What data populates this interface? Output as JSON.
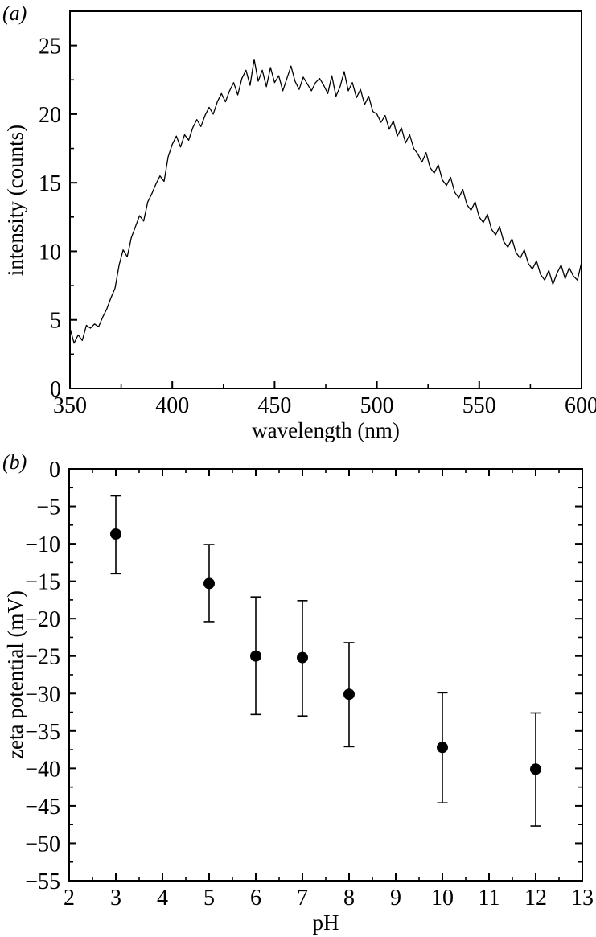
{
  "figure": {
    "background_color": "#ffffff",
    "ink_color": "#000000",
    "marker_color": "#000000"
  },
  "chart_data": [
    {
      "id": "emission-spectrum",
      "panel_label": "(a)",
      "type": "line",
      "xlabel": "wavelength (nm)",
      "ylabel": "intensity (counts)",
      "xlim": [
        350,
        600
      ],
      "ylim": [
        0,
        27.5
      ],
      "x_major_ticks": [
        350,
        400,
        450,
        500,
        550,
        600
      ],
      "x_minor_step": 25,
      "y_major_ticks": [
        0,
        5,
        10,
        15,
        20,
        25
      ],
      "y_minor_step": 2.5,
      "grid": false,
      "legend": null,
      "x_start": 350,
      "x_step": 2,
      "values": [
        4.4,
        3.3,
        3.9,
        3.5,
        4.6,
        4.4,
        4.7,
        4.5,
        5.2,
        5.8,
        6.6,
        7.3,
        9.0,
        10.1,
        9.6,
        11.0,
        11.8,
        12.6,
        12.2,
        13.6,
        14.2,
        14.9,
        15.5,
        15.1,
        16.9,
        17.8,
        18.4,
        17.6,
        18.5,
        18.1,
        19.0,
        19.6,
        19.1,
        19.9,
        20.5,
        20.0,
        20.9,
        21.5,
        20.9,
        21.7,
        22.3,
        21.4,
        22.6,
        23.2,
        22.1,
        24.0,
        22.4,
        23.2,
        22.0,
        23.4,
        22.3,
        22.8,
        21.7,
        22.6,
        23.5,
        22.4,
        21.8,
        22.7,
        22.2,
        21.7,
        22.3,
        22.6,
        22.1,
        21.5,
        22.8,
        21.3,
        22.0,
        23.1,
        21.7,
        22.3,
        21.2,
        21.8,
        20.7,
        21.3,
        20.2,
        20.0,
        19.4,
        19.9,
        18.9,
        19.5,
        18.4,
        19.0,
        17.9,
        18.5,
        17.5,
        17.1,
        16.5,
        17.2,
        16.1,
        15.7,
        16.3,
        15.2,
        14.8,
        15.4,
        14.3,
        13.9,
        14.5,
        13.4,
        13.0,
        13.6,
        12.5,
        12.1,
        12.7,
        11.6,
        11.2,
        11.8,
        10.7,
        10.3,
        10.9,
        9.9,
        9.5,
        10.1,
        9.1,
        8.7,
        9.3,
        8.3,
        7.9,
        8.6,
        7.6,
        8.4,
        9.0,
        8.0,
        8.8,
        8.2,
        7.9,
        9.2
      ]
    },
    {
      "id": "zeta-potential-vs-ph",
      "panel_label": "(b)",
      "type": "scatter",
      "xlabel": "pH",
      "ylabel": "zeta potential (mV)",
      "xlim": [
        2,
        13
      ],
      "ylim": [
        -55,
        0
      ],
      "x_major_ticks": [
        2,
        3,
        4,
        5,
        6,
        7,
        8,
        9,
        10,
        11,
        12,
        13
      ],
      "x_minor_step": 0.5,
      "y_major_ticks": [
        0,
        -5,
        -10,
        -15,
        -20,
        -25,
        -30,
        -35,
        -40,
        -45,
        -50,
        -55
      ],
      "y_minor_step": 2.5,
      "grid": false,
      "legend": null,
      "points": [
        {
          "ph": 3,
          "zeta": -8.7,
          "err_high": -3.6,
          "err_low": -14.0
        },
        {
          "ph": 5,
          "zeta": -15.3,
          "err_high": -10.1,
          "err_low": -20.4
        },
        {
          "ph": 6,
          "zeta": -25.0,
          "err_high": -17.1,
          "err_low": -32.8
        },
        {
          "ph": 7,
          "zeta": -25.2,
          "err_high": -17.6,
          "err_low": -33.0
        },
        {
          "ph": 8,
          "zeta": -30.1,
          "err_high": -23.2,
          "err_low": -37.1
        },
        {
          "ph": 10,
          "zeta": -37.2,
          "err_high": -29.9,
          "err_low": -44.6
        },
        {
          "ph": 12,
          "zeta": -40.1,
          "err_high": -32.6,
          "err_low": -47.7
        }
      ]
    }
  ]
}
